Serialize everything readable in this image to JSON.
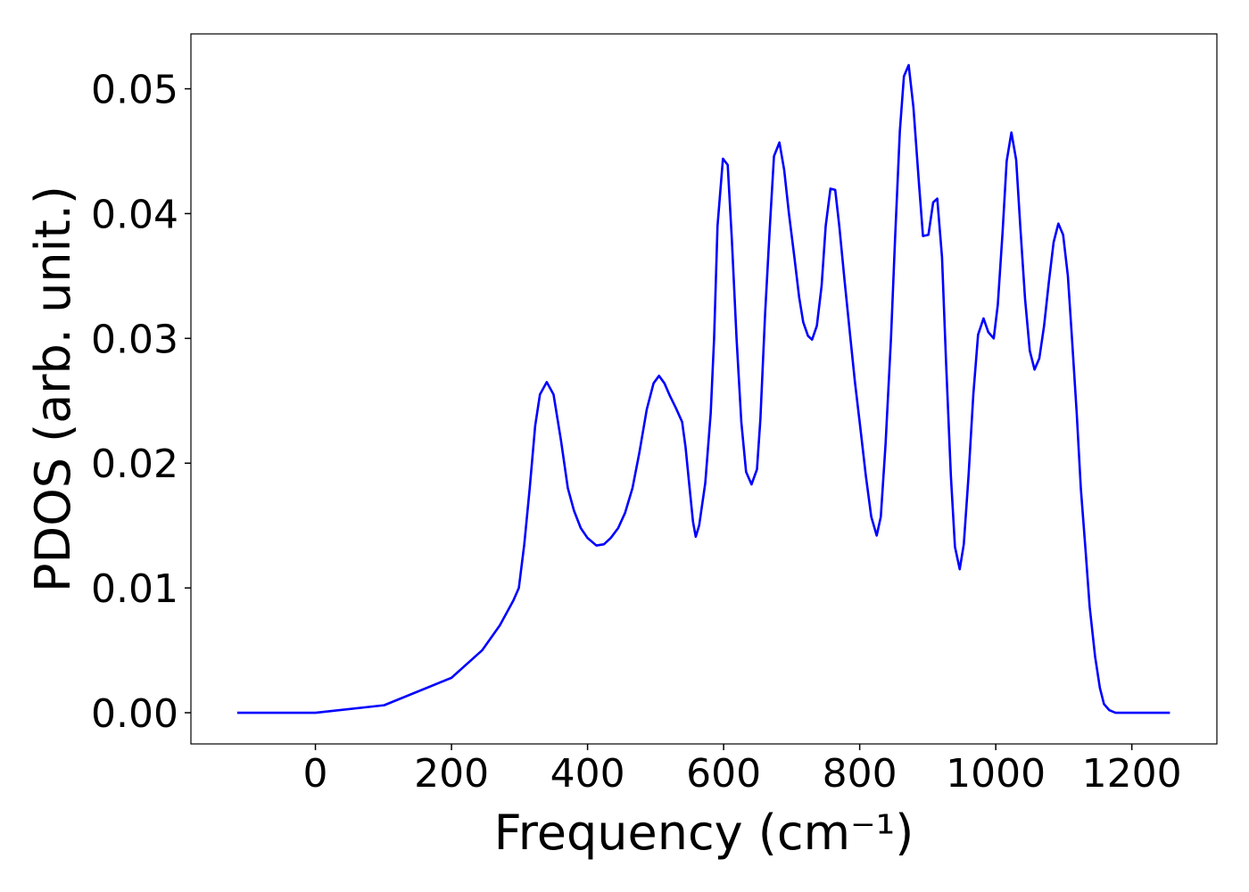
{
  "chart_data": {
    "type": "line",
    "xlabel": "Frequency (cm⁻¹)",
    "ylabel": "PDOS (arb. unit.)",
    "xlim": [
      -183,
      1325
    ],
    "ylim": [
      -0.0025,
      0.0544
    ],
    "xticks": [
      0,
      200,
      400,
      600,
      800,
      1000,
      1200
    ],
    "yticks": [
      {
        "value": 0,
        "label": "0.00"
      },
      {
        "value": 0.01,
        "label": "0.01"
      },
      {
        "value": 0.02,
        "label": "0.02"
      },
      {
        "value": 0.03,
        "label": "0.03"
      },
      {
        "value": 0.04,
        "label": "0.04"
      },
      {
        "value": 0.05,
        "label": "0.05"
      }
    ],
    "x": [
      -115,
      0,
      101,
      200,
      245,
      271,
      291,
      299,
      307,
      315,
      323,
      330,
      340,
      350,
      361,
      371,
      380,
      390,
      400,
      413,
      424,
      434,
      445,
      455,
      466,
      476,
      487,
      497,
      505,
      513,
      521,
      530,
      539,
      544,
      550,
      555,
      559,
      564,
      573,
      581,
      586,
      591,
      599,
      606,
      612,
      619,
      626,
      633,
      641,
      649,
      654,
      661,
      668,
      674,
      682,
      689,
      696,
      704,
      711,
      717,
      724,
      730,
      737,
      744,
      750,
      757,
      764,
      770,
      778,
      786,
      793,
      801,
      809,
      817,
      825,
      831,
      838,
      846,
      852,
      859,
      865,
      872,
      879,
      887,
      893,
      901,
      908,
      914,
      921,
      927,
      934,
      940,
      947,
      953,
      960,
      967,
      974,
      982,
      989,
      997,
      1003,
      1010,
      1016,
      1023,
      1030,
      1036,
      1043,
      1050,
      1057,
      1064,
      1071,
      1078,
      1085,
      1092,
      1099,
      1106,
      1112,
      1119,
      1125,
      1132,
      1138,
      1146,
      1153,
      1159,
      1167,
      1176,
      1256
    ],
    "series": [
      {
        "color": "#0000ff",
        "values": [
          0,
          0,
          0.0006,
          0.0028,
          0.005,
          0.007,
          0.009,
          0.01,
          0.0135,
          0.018,
          0.023,
          0.0255,
          0.0265,
          0.0255,
          0.0218,
          0.018,
          0.0162,
          0.0148,
          0.014,
          0.0134,
          0.0135,
          0.014,
          0.0148,
          0.016,
          0.018,
          0.0208,
          0.0243,
          0.0264,
          0.027,
          0.0264,
          0.0254,
          0.0244,
          0.0233,
          0.0213,
          0.018,
          0.0153,
          0.0141,
          0.015,
          0.0184,
          0.024,
          0.03,
          0.039,
          0.0444,
          0.0439,
          0.038,
          0.03,
          0.0233,
          0.0193,
          0.0183,
          0.0195,
          0.0235,
          0.032,
          0.039,
          0.0446,
          0.0457,
          0.0435,
          0.04,
          0.0365,
          0.0333,
          0.0313,
          0.0302,
          0.0299,
          0.031,
          0.0342,
          0.039,
          0.042,
          0.0419,
          0.039,
          0.0345,
          0.0302,
          0.0265,
          0.0228,
          0.019,
          0.0157,
          0.0142,
          0.0157,
          0.0215,
          0.03,
          0.038,
          0.0466,
          0.051,
          0.0519,
          0.0485,
          0.0425,
          0.0382,
          0.0383,
          0.0409,
          0.0412,
          0.0365,
          0.028,
          0.019,
          0.0133,
          0.0115,
          0.0135,
          0.019,
          0.0255,
          0.0303,
          0.0316,
          0.0305,
          0.03,
          0.0327,
          0.0385,
          0.0442,
          0.0465,
          0.0443,
          0.039,
          0.0332,
          0.029,
          0.0275,
          0.0284,
          0.031,
          0.0345,
          0.0377,
          0.0392,
          0.0383,
          0.035,
          0.03,
          0.024,
          0.018,
          0.013,
          0.0085,
          0.0045,
          0.002,
          0.0007,
          0.0002,
          0,
          0
        ]
      }
    ]
  }
}
